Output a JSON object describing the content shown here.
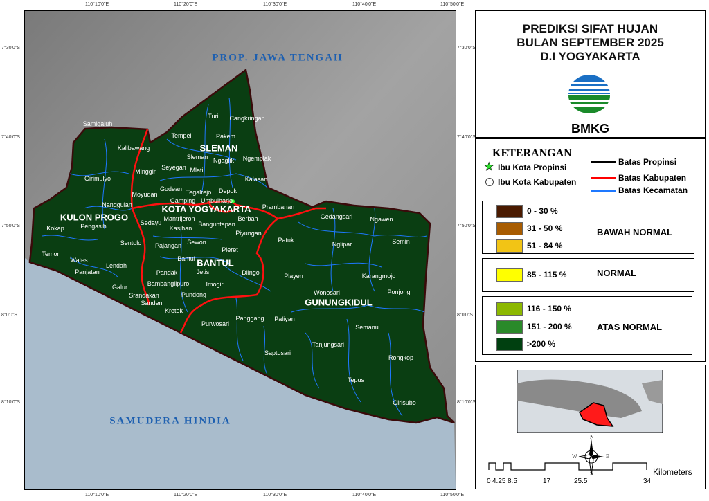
{
  "title": {
    "line1": "PREDIKSI SIFAT HUJAN",
    "line2": "BULAN SEPTEMBER 2025",
    "line3": "D.I YOGYAKARTA"
  },
  "logo": {
    "text": "BMKG"
  },
  "grid": {
    "lon": [
      "110°10'0\"E",
      "110°20'0\"E",
      "110°30'0\"E",
      "110°40'0\"E",
      "110°50'0\"E"
    ],
    "lat": [
      "7°30'0\"S",
      "7°40'0\"S",
      "7°50'0\"S",
      "8°0'0\"S",
      "8°10'0\"S"
    ]
  },
  "regions": {
    "north": "PROP. JAWA TENGAH",
    "south": "SAMUDERA HINDIA"
  },
  "kabupaten": [
    "SLEMAN",
    "KOTA YOGYAKARTA",
    "KULON PROGO",
    "BANTUL",
    "GUNUNGKIDUL"
  ],
  "kecamatan": [
    "Turi",
    "Cangkringan",
    "Tempel",
    "Pakem",
    "Samigaluh",
    "Kalibawang",
    "Sleman",
    "Ngaglik",
    "Ngemplak",
    "Minggir",
    "Seyegan",
    "Mlati",
    "Girimulyo",
    "Kalasan",
    "Godean",
    "Tegalrejo",
    "Depok",
    "Moyudan",
    "Nanggulan",
    "Gamping",
    "Umbulharjo",
    "Prambanan",
    "Kokap",
    "Pengasih",
    "Sedayu",
    "Mantrijeron",
    "Berbah",
    "Gedangsari",
    "Ngawen",
    "Kasihan",
    "Banguntapan",
    "Piyungan",
    "Patuk",
    "Nglipar",
    "Semin",
    "Sentolo",
    "Pajangan",
    "Sewon",
    "Pleret",
    "Temon",
    "Wates",
    "Lendah",
    "Bantul",
    "Jetis",
    "Dlingo",
    "Playen",
    "Karangmojo",
    "Panjatan",
    "Galur",
    "Pandak",
    "Bambanglipuro",
    "Imogiri",
    "Wonosari",
    "Ponjong",
    "Srandakan",
    "Pundong",
    "Sanden",
    "Kretek",
    "Purwosari",
    "Panggang",
    "Paliyan",
    "Semanu",
    "Tanjungsari",
    "Saptosari",
    "Rongkop",
    "Tepus",
    "Girisubo"
  ],
  "legend": {
    "heading": "KETERANGAN",
    "symbols": [
      "Ibu Kota Propinsi",
      "Ibu Kota Kabupaten"
    ],
    "lines": [
      {
        "label": "Batas Propinsi",
        "color": "#000000"
      },
      {
        "label": "Batas Kabupaten",
        "color": "#ff0000"
      },
      {
        "label": "Batas Kecamatan",
        "color": "#1e78ff"
      }
    ],
    "classes": [
      {
        "label": "0 - 30 %",
        "color": "#4a1a00"
      },
      {
        "label": "31 - 50 %",
        "color": "#a85c00"
      },
      {
        "label": "51 - 84 %",
        "color": "#f2c415"
      },
      {
        "label": "85 - 115 %",
        "color": "#ffff00"
      },
      {
        "label": "116 - 150 %",
        "color": "#8cb800"
      },
      {
        "label": "151 - 200 %",
        "color": "#2a8a2a"
      },
      {
        "label": ">200 %",
        "color": "#004010"
      }
    ],
    "categories": [
      "BAWAH NORMAL",
      "NORMAL",
      "ATAS NORMAL"
    ]
  },
  "compass": {
    "n": "N",
    "s": "S",
    "e": "E",
    "w": "W"
  },
  "scale": {
    "ticks": [
      "0",
      "4.25",
      "8.5",
      "17",
      "25.5",
      "34"
    ],
    "unit": "Kilometers"
  }
}
